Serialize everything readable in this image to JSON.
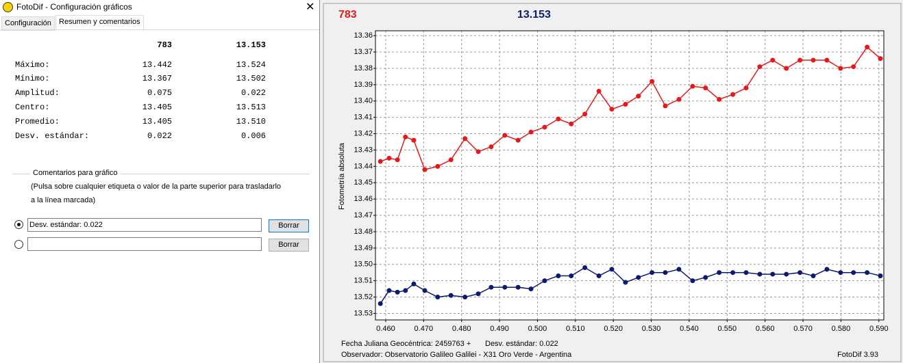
{
  "window": {
    "title": "FotoDif - Configuración gráficos",
    "tabs": [
      "Configuración",
      "Resumen y comentarios"
    ]
  },
  "summary": {
    "headers": [
      "783",
      "13.153"
    ],
    "rows": [
      [
        "Máximo:",
        "13.442",
        "13.524"
      ],
      [
        "Mínimo:",
        "13.367",
        "13.502"
      ],
      [
        "Amplitud:",
        "0.075",
        "0.022"
      ],
      [
        "Centro:",
        "13.405",
        "13.513"
      ],
      [
        "Promedio:",
        "13.405",
        "13.510"
      ],
      [
        "Desv. estándar:",
        "0.022",
        "0.006"
      ]
    ]
  },
  "comments": {
    "legend": "Comentarios para gráfico",
    "instructions": [
      "(Pulsa sobre cualquier etiqueta o valor de la parte superior para trasladarlo",
      "a la línea marcada)"
    ],
    "input_1": "Desv. estándar: 0.022",
    "button": "Borrar"
  },
  "chart_data": {
    "type": "line",
    "ylabel": "Fotometría absoluta",
    "x": [
      0.4586,
      0.4609,
      0.4631,
      0.4652,
      0.4674,
      0.4703,
      0.4737,
      0.4772,
      0.4809,
      0.4844,
      0.4878,
      0.4914,
      0.4949,
      0.4983,
      0.5019,
      0.5055,
      0.5089,
      0.5125,
      0.5162,
      0.5196,
      0.5232,
      0.5266,
      0.5302,
      0.5337,
      0.5373,
      0.5409,
      0.5443,
      0.5479,
      0.5515,
      0.555,
      0.5586,
      0.562,
      0.5656,
      0.5692,
      0.5727,
      0.5763,
      0.5799,
      0.5833,
      0.5869,
      0.5904
    ],
    "series": [
      {
        "name": "783",
        "color": "#e31a1c",
        "values": [
          13.437,
          13.435,
          13.436,
          13.422,
          13.424,
          13.442,
          13.44,
          13.436,
          13.423,
          13.431,
          13.428,
          13.421,
          13.424,
          13.419,
          13.416,
          13.411,
          13.414,
          13.408,
          13.394,
          13.405,
          13.402,
          13.397,
          13.388,
          13.403,
          13.399,
          13.391,
          13.392,
          13.399,
          13.396,
          13.392,
          13.379,
          13.375,
          13.38,
          13.375,
          13.375,
          13.375,
          13.38,
          13.379,
          13.367,
          13.374
        ]
      },
      {
        "name": "13.153",
        "color": "#0d1b6e",
        "values": [
          13.524,
          13.516,
          13.517,
          13.516,
          13.512,
          13.516,
          13.52,
          13.519,
          13.52,
          13.518,
          13.514,
          13.514,
          13.514,
          13.515,
          13.51,
          13.507,
          13.507,
          13.502,
          13.507,
          13.503,
          13.511,
          13.508,
          13.505,
          13.505,
          13.503,
          13.51,
          13.508,
          13.505,
          13.505,
          13.505,
          13.506,
          13.506,
          13.506,
          13.505,
          13.507,
          13.503,
          13.505,
          13.505,
          13.505,
          13.507
        ]
      }
    ],
    "xlim": [
      0.4573,
      0.5913
    ],
    "xticks": [
      {
        "value": 0.46,
        "label": "0.460"
      },
      {
        "value": 0.47,
        "label": "0.470"
      },
      {
        "value": 0.48,
        "label": "0.480"
      },
      {
        "value": 0.49,
        "label": "0.490"
      },
      {
        "value": 0.5,
        "label": "0.500"
      },
      {
        "value": 0.51,
        "label": "0.510"
      },
      {
        "value": 0.52,
        "label": "0.520"
      },
      {
        "value": 0.53,
        "label": "0.530"
      },
      {
        "value": 0.54,
        "label": "0.540"
      },
      {
        "value": 0.55,
        "label": "0.550"
      },
      {
        "value": 0.56,
        "label": "0.560"
      },
      {
        "value": 0.57,
        "label": "0.570"
      },
      {
        "value": 0.58,
        "label": "0.580"
      },
      {
        "value": 0.59,
        "label": "0.590"
      }
    ],
    "ylim": [
      13.534,
      13.357
    ],
    "yticks": [
      13.36,
      13.37,
      13.38,
      13.39,
      {
        "value": 13.4,
        "label": "13.40"
      },
      13.41,
      13.42,
      13.43,
      13.44,
      13.45,
      13.46,
      13.47,
      13.48,
      13.49,
      {
        "value": 13.5,
        "label": "13.50"
      },
      13.51,
      13.52,
      13.53
    ],
    "grid": true,
    "footer": [
      "Fecha Juliana Geocéntrica: 2459763 +",
      "Desv. estándar: 0.022",
      "Observador: Observatorio Galileo Galilei - X31 Oro Verde - Argentina",
      "FotoDif 3.93"
    ]
  }
}
